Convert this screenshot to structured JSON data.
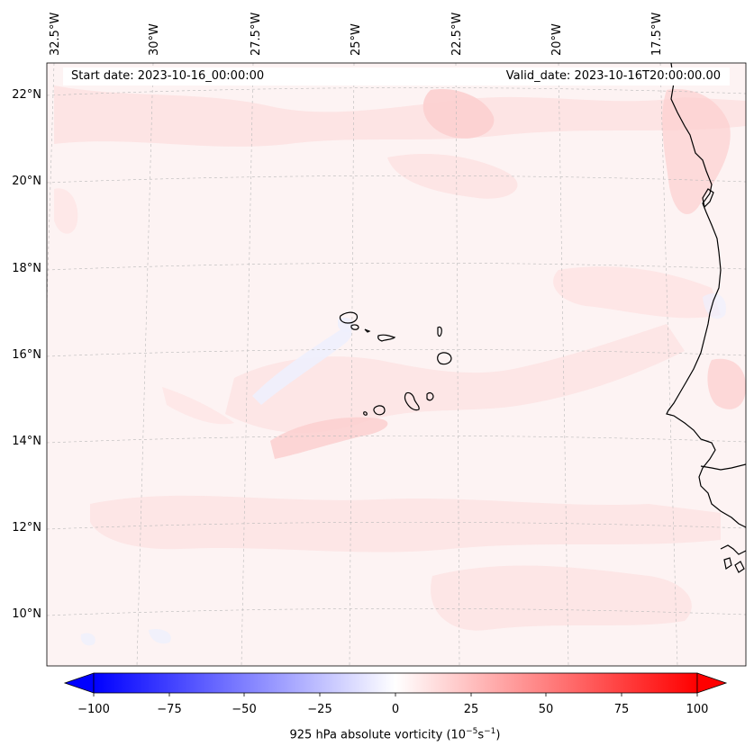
{
  "header": {
    "start_date": "Start date: 2023-10-16_00:00:00",
    "valid_date": "Valid_date: 2023-10-16T20:00:00.00"
  },
  "map": {
    "projection": "lambert-conformal",
    "region": "Cabo Verde and West African coast",
    "gridlines": "dashed light grey",
    "longitude_labels": [
      "32.5°W",
      "30°W",
      "27.5°W",
      "25°W",
      "22.5°W",
      "20°W",
      "17.5°W"
    ],
    "latitude_labels": [
      "22°N",
      "20°N",
      "18°N",
      "16°N",
      "14°N",
      "12°N",
      "10°N"
    ],
    "field": "925 hPa absolute vorticity",
    "field_character": "weakly positive (light pink) over most of the domain, small negative patches near the islands"
  },
  "colorbar": {
    "ticks": [
      "−100",
      "−75",
      "−50",
      "−25",
      "0",
      "25",
      "50",
      "75",
      "100"
    ],
    "min_color": "#0000ff",
    "mid_color": "#ffffff",
    "max_color": "#ff0000",
    "label_prefix": "925 hPa absolute vorticity (10",
    "label_exp1": "−5",
    "label_mid": "s",
    "label_exp2": "−1",
    "label_suffix": ")"
  },
  "colors": {
    "background_field": "#fdf3f3",
    "light_positive": "#fde2e2",
    "medium_positive": "#fccfcf",
    "light_negative": "#eef0fd",
    "coastline": "#000000"
  }
}
